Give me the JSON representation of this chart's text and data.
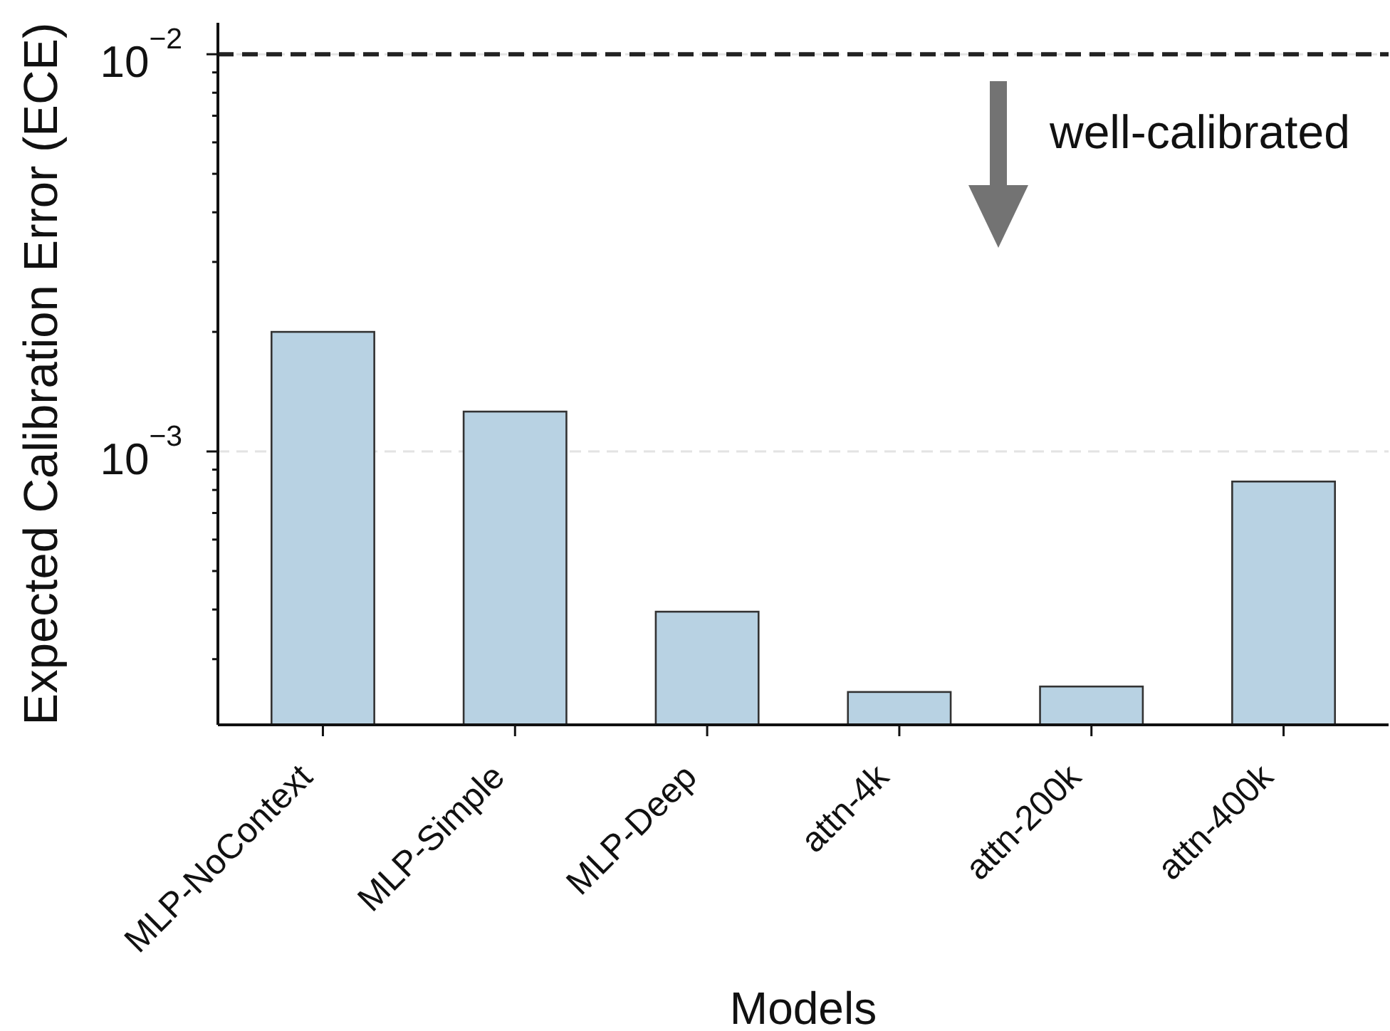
{
  "chart_data": {
    "type": "bar",
    "xlabel": "Models",
    "ylabel": "Expected Calibration Error (ECE)",
    "categories": [
      "MLP-NoContext",
      "MLP-Simple",
      "MLP-Deep",
      "attn-4k",
      "attn-200k",
      "attn-400k"
    ],
    "values": [
      0.002,
      0.00126,
      0.000395,
      0.000248,
      0.000256,
      0.00084
    ],
    "color": "#b8d2e3",
    "log": true,
    "ylim": [
      0.000205,
      0.012
    ],
    "yticks": [
      {
        "value": 0.0003,
        "label": null
      },
      {
        "value": 0.0004,
        "label": null
      },
      {
        "value": 0.0005,
        "label": null
      },
      {
        "value": 0.0006,
        "label": null
      },
      {
        "value": 0.0007,
        "label": null
      },
      {
        "value": 0.0008,
        "label": null
      },
      {
        "value": 0.0009,
        "label": null
      },
      {
        "value": 0.001,
        "label": "10$^{−3}$"
      },
      {
        "value": 0.002,
        "label": null
      },
      {
        "value": 0.003,
        "label": null
      },
      {
        "value": 0.004,
        "label": null
      },
      {
        "value": 0.005,
        "label": null
      },
      {
        "value": 0.006,
        "label": null
      },
      {
        "value": 0.007,
        "label": null
      },
      {
        "value": 0.008,
        "label": null
      },
      {
        "value": 0.009,
        "label": null
      },
      {
        "value": 0.01,
        "label": "10$^{−2}$"
      }
    ],
    "grid": "y",
    "ref_lines": [
      {
        "axis": "y",
        "value": 0.01,
        "color": "#222222",
        "line_style": "dashed"
      }
    ],
    "annotations": [
      "well-calibrated"
    ]
  }
}
